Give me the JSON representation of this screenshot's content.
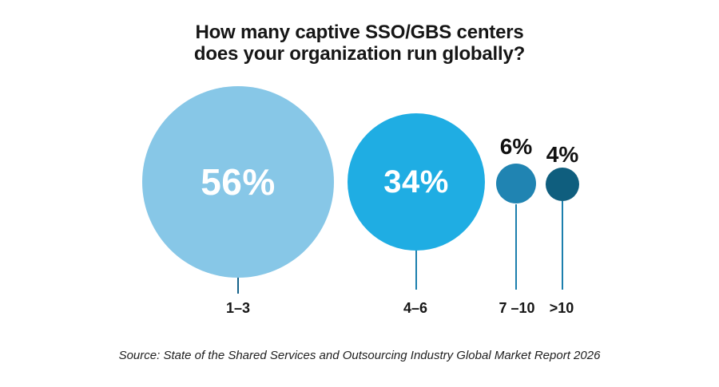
{
  "chart_data": {
    "type": "bubble",
    "title": "How many captive SSO/GBS centers does your organization run globally?",
    "title_lines": [
      "How many captive SSO/GBS centers",
      "does your organization run globally?"
    ],
    "categories": [
      "1–3",
      "4–6",
      "7 –10",
      ">10"
    ],
    "values": [
      56,
      34,
      6,
      4
    ],
    "legend": "none",
    "grid": false,
    "items": [
      {
        "category": "1–3",
        "value": 56,
        "value_label": "56%",
        "value_label_position": "inside",
        "bubble_color": "#87C7E7",
        "stem_color": "#15628A"
      },
      {
        "category": "4–6",
        "value": 34,
        "value_label": "34%",
        "value_label_position": "inside",
        "bubble_color": "#1FADE3",
        "stem_color": "#1C7FAD"
      },
      {
        "category": "7 –10",
        "value": 6,
        "value_label": "6%",
        "value_label_position": "above",
        "bubble_color": "#2084B2",
        "stem_color": "#1C7FAD"
      },
      {
        "category": ">10",
        "value": 4,
        "value_label": "4%",
        "value_label_position": "above",
        "bubble_color": "#0F5E7E",
        "stem_color": "#1C7FAD"
      }
    ],
    "source": "Source: State of the Shared Services and Outsourcing Industry Global Market Report 2026"
  },
  "colors": {
    "background": "#ffffff",
    "title_text": "#161616",
    "inside_label_text": "#ffffff",
    "outside_label_text": "#111111"
  }
}
